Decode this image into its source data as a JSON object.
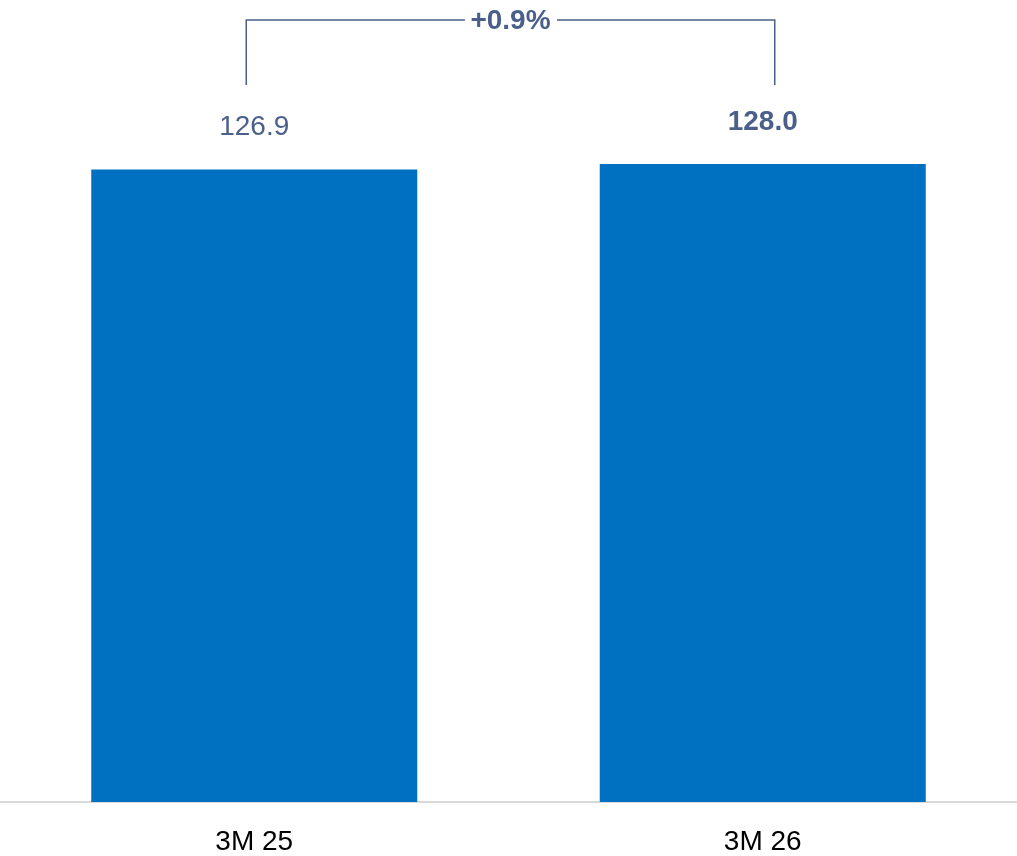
{
  "chart_data": {
    "type": "bar",
    "categories": [
      "3M 25",
      "3M 26"
    ],
    "values": [
      126.9,
      128.0
    ],
    "value_labels": [
      "126.9",
      "128.0"
    ],
    "color": "#0070c0",
    "ylim": [
      0,
      128
    ],
    "annotations": [
      "+0.9%"
    ]
  }
}
